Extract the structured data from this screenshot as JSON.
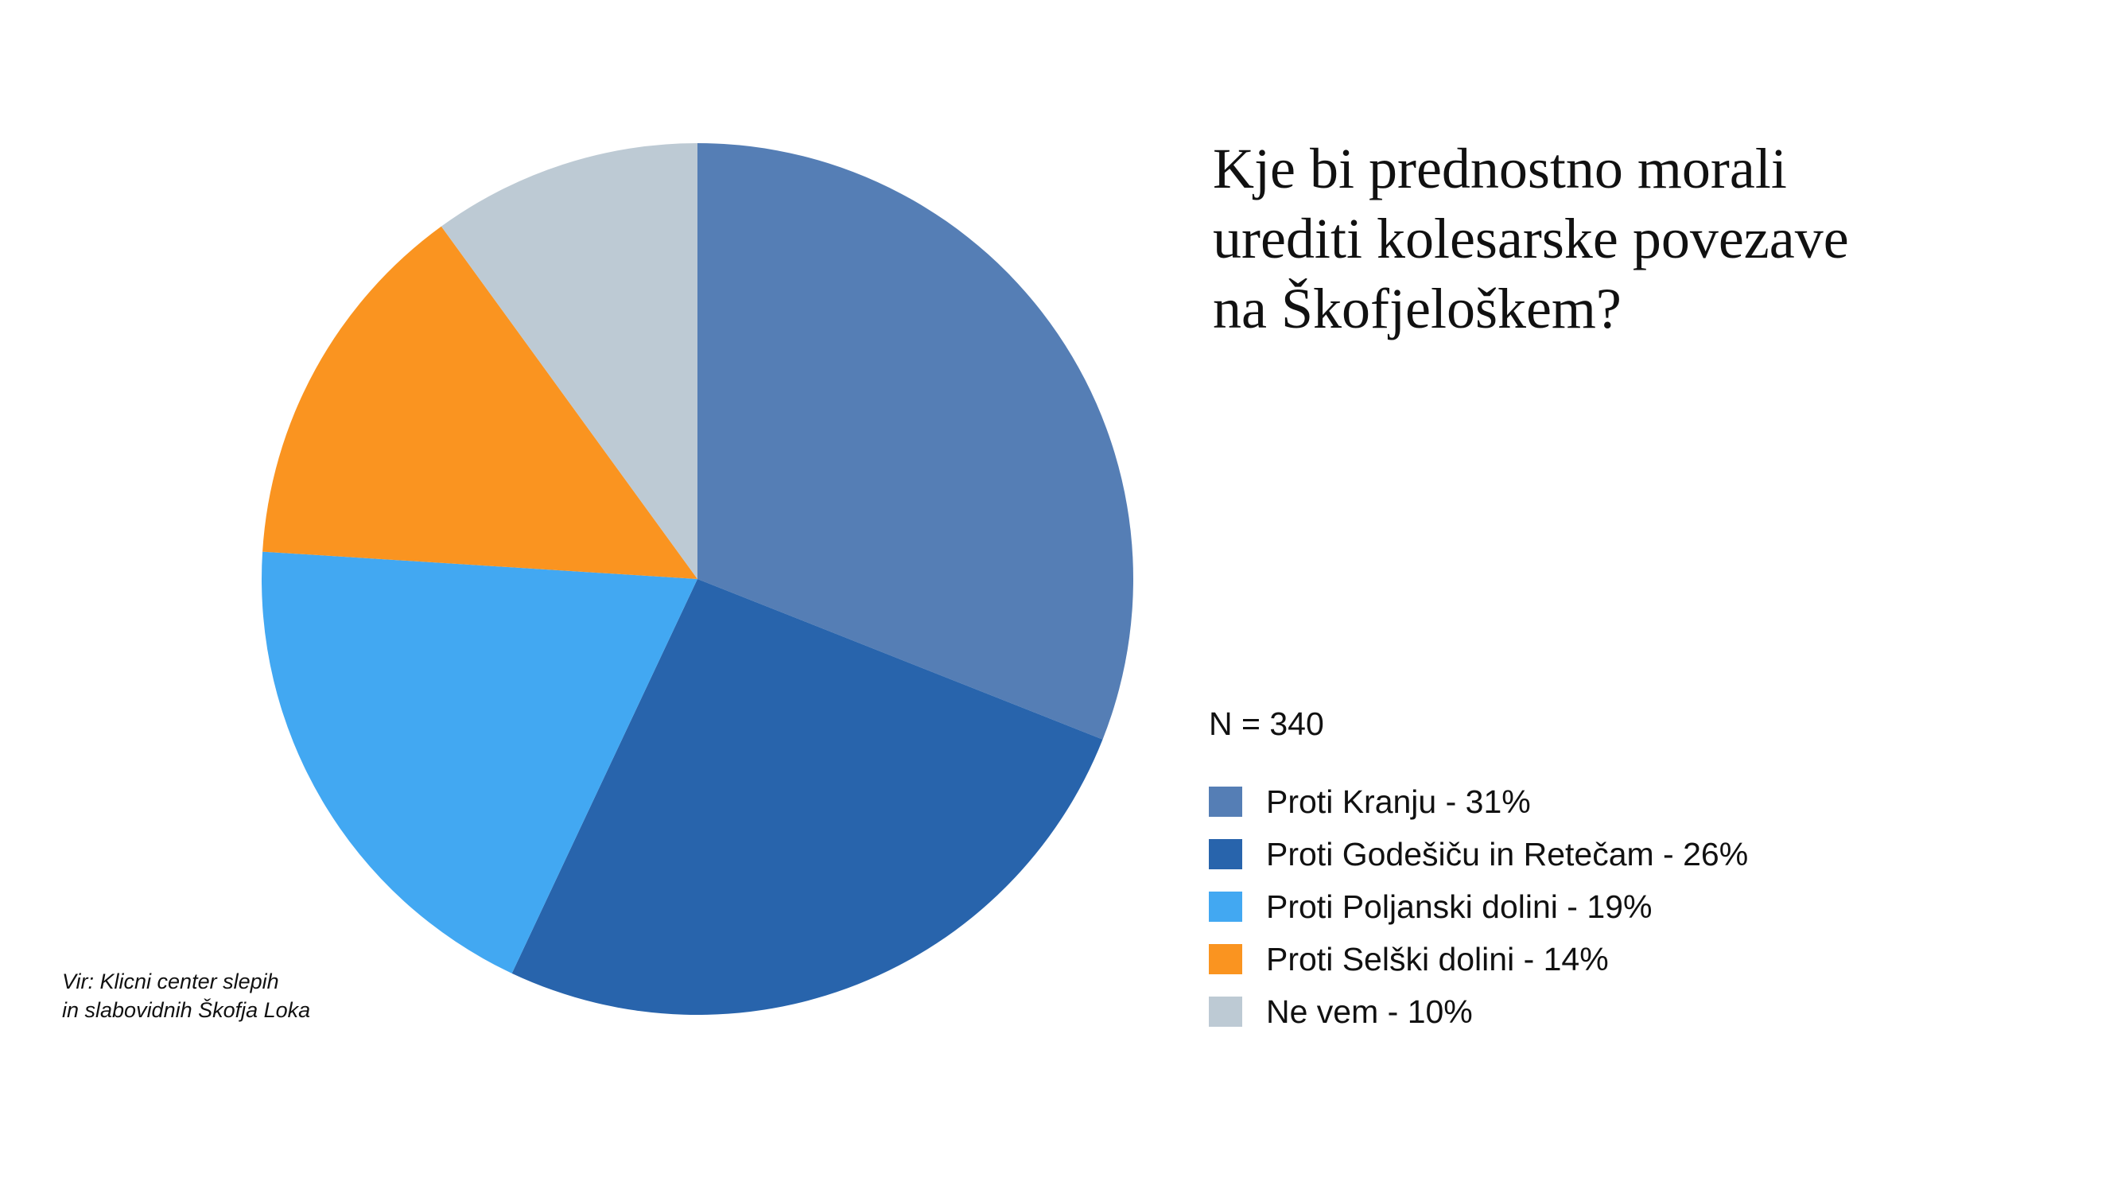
{
  "chart_data": {
    "type": "pie",
    "title_lines": [
      "Kje bi prednostno morali",
      "urediti kolesarske povezave",
      "na Škofjeloškem?"
    ],
    "sample_size_label": "N = 340",
    "slices": [
      {
        "label": "Proti Kranju - 31%",
        "value": 31,
        "color": "#557eb5"
      },
      {
        "label": "Proti Godešiču in Retečam - 26%",
        "value": 26,
        "color": "#2864ac"
      },
      {
        "label": "Proti Poljanski dolini - 19%",
        "value": 19,
        "color": "#42a8f2"
      },
      {
        "label": "Proti Selški dolini - 14%",
        "value": 14,
        "color": "#fa9420"
      },
      {
        "label": "Ne vem - 10%",
        "value": 10,
        "color": "#bdcad4"
      }
    ],
    "legend_position": "right",
    "source_lines": [
      "Vir: Klicni center slepih",
      "in slabovidnih Škofja Loka"
    ]
  }
}
